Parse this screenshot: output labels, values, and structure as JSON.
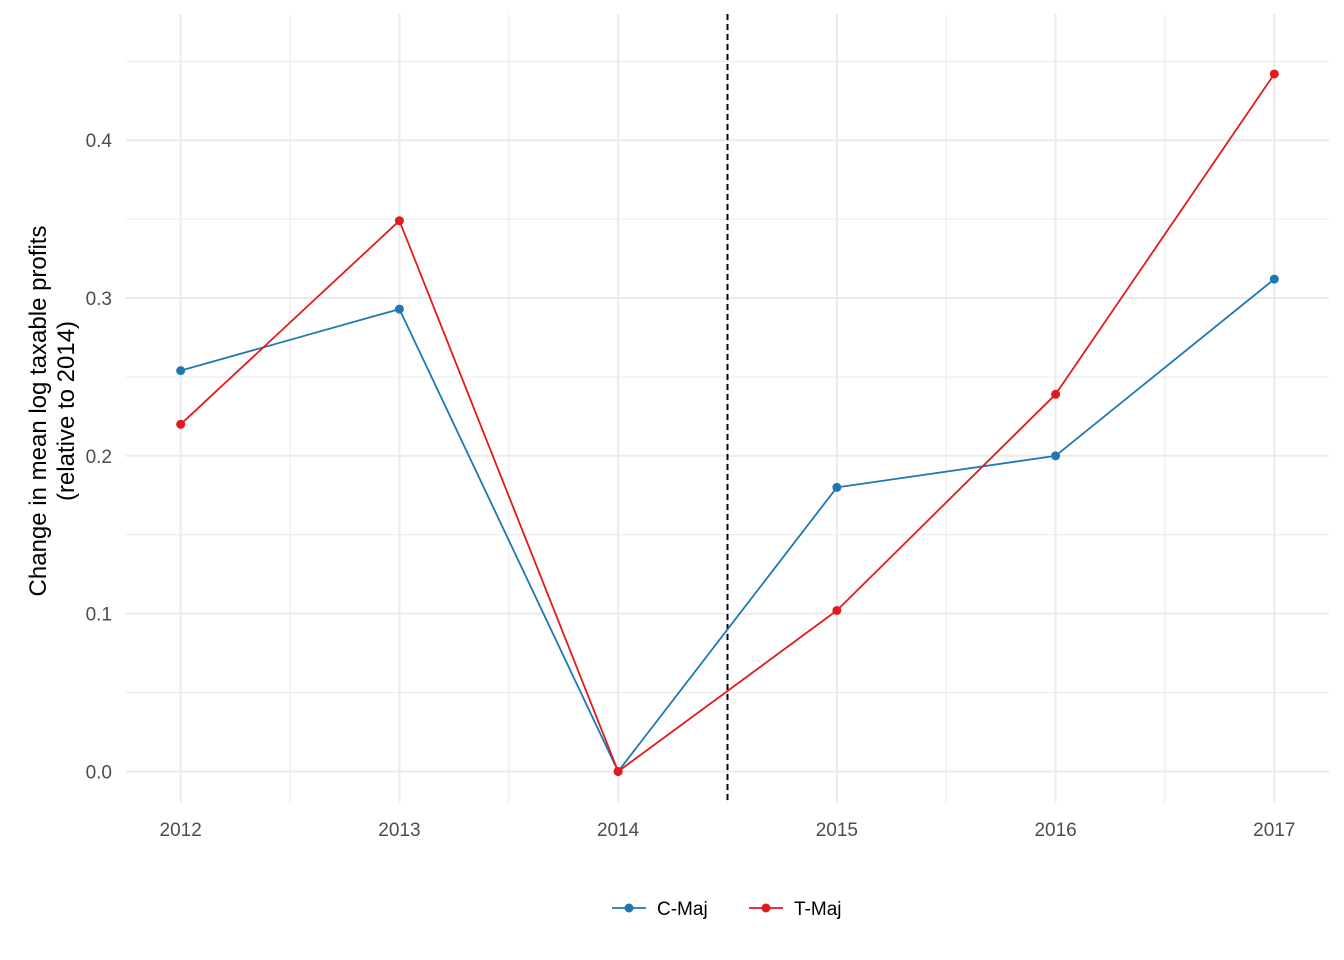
{
  "chart_data": {
    "type": "line",
    "title": "",
    "xlabel": "",
    "ylabel_line1": "Change in mean log taxable profits",
    "ylabel_line2": "(relative to 2014)",
    "x": [
      2012,
      2013,
      2014,
      2015,
      2016,
      2017
    ],
    "x_tick_labels": [
      "2012",
      "2013",
      "2014",
      "2015",
      "2016",
      "2017"
    ],
    "y_ticks": [
      0.0,
      0.1,
      0.2,
      0.3,
      0.4
    ],
    "y_tick_labels": [
      "0.0",
      "0.1",
      "0.2",
      "0.3",
      "0.4"
    ],
    "xlim": [
      2011.75,
      2017.25
    ],
    "ylim": [
      -0.02,
      0.48
    ],
    "vertical_reference_line": {
      "x": 2014.5,
      "style": "dashed",
      "color": "#000000"
    },
    "grid": true,
    "legend_position": "bottom",
    "series": [
      {
        "name": "C-Maj",
        "color": "#1F78B4",
        "values": [
          0.254,
          0.293,
          0.0,
          0.18,
          0.2,
          0.312
        ]
      },
      {
        "name": "T-Maj",
        "color": "#E31A1C",
        "values": [
          0.22,
          0.349,
          0.0,
          0.102,
          0.239,
          0.442
        ]
      }
    ]
  }
}
